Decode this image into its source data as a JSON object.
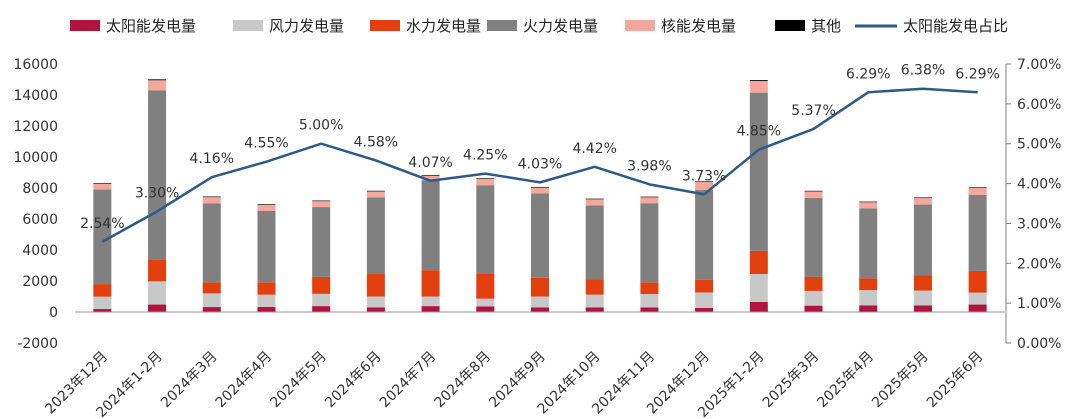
{
  "chart_data": {
    "type": "bar",
    "stacked": true,
    "categories": [
      "2023年12月",
      "2024年1-2月",
      "2024年3月",
      "2024年4月",
      "2024年5月",
      "2024年6月",
      "2024年7月",
      "2024年8月",
      "2024年9月",
      "2024年10月",
      "2024年11月",
      "2024年12月",
      "2025年1-2月",
      "2025年3月",
      "2025年4月",
      "2025年5月",
      "2025年6月"
    ],
    "series": [
      {
        "name": "太阳能发电量",
        "color": "#B2123E",
        "values": [
          190,
          480,
          320,
          330,
          380,
          300,
          380,
          360,
          300,
          300,
          290,
          270,
          650,
          410,
          430,
          430,
          480
        ]
      },
      {
        "name": "风力发电量",
        "color": "#C8C8C8",
        "values": [
          800,
          1500,
          880,
          790,
          790,
          700,
          620,
          500,
          700,
          820,
          870,
          990,
          1800,
          950,
          980,
          950,
          770
        ]
      },
      {
        "name": "水力发电量",
        "color": "#E2400F",
        "values": [
          810,
          1420,
          710,
          800,
          1100,
          1450,
          1700,
          1620,
          1200,
          1000,
          760,
          810,
          1500,
          900,
          770,
          1000,
          1400
        ]
      },
      {
        "name": "火力发电量",
        "color": "#808080",
        "values": [
          6100,
          10900,
          5100,
          4600,
          4500,
          4950,
          5800,
          5700,
          5450,
          4750,
          5100,
          5800,
          10200,
          5100,
          4500,
          4550,
          4900
        ]
      },
      {
        "name": "核能发电量",
        "color": "#F4A89C",
        "values": [
          380,
          650,
          400,
          400,
          380,
          380,
          300,
          420,
          380,
          400,
          380,
          520,
          750,
          420,
          400,
          420,
          460
        ]
      },
      {
        "name": "其他",
        "color": "#000000",
        "values": [
          40,
          60,
          40,
          40,
          40,
          40,
          40,
          40,
          40,
          40,
          40,
          40,
          60,
          40,
          40,
          40,
          40
        ]
      }
    ],
    "line_series": {
      "name": "太阳能发电占比",
      "color": "#2F5A86",
      "axis": "right",
      "values": [
        2.54,
        3.3,
        4.16,
        4.55,
        5.0,
        4.58,
        4.07,
        4.25,
        4.03,
        4.42,
        3.98,
        3.73,
        4.85,
        5.37,
        6.29,
        6.38,
        6.29
      ],
      "labels": [
        "2.54%",
        "3.30%",
        "4.16%",
        "4.55%",
        "5.00%",
        "4.58%",
        "4.07%",
        "4.25%",
        "4.03%",
        "4.42%",
        "3.98%",
        "3.73%",
        "4.85%",
        "5.37%",
        "6.29%",
        "6.38%",
        "6.29%"
      ]
    },
    "y_left": {
      "min": -2000,
      "max": 16000,
      "step": 2000,
      "ticks": [
        "-2000",
        "0",
        "2000",
        "4000",
        "6000",
        "8000",
        "10000",
        "12000",
        "14000",
        "16000"
      ]
    },
    "y_right": {
      "min": 0,
      "max": 7,
      "step": 1,
      "ticks": [
        "0.00%",
        "1.00%",
        "2.00%",
        "3.00%",
        "4.00%",
        "5.00%",
        "6.00%",
        "7.00%"
      ]
    },
    "legend_position": "top",
    "grid": false,
    "title": "",
    "xlabel": "",
    "ylabel": ""
  }
}
